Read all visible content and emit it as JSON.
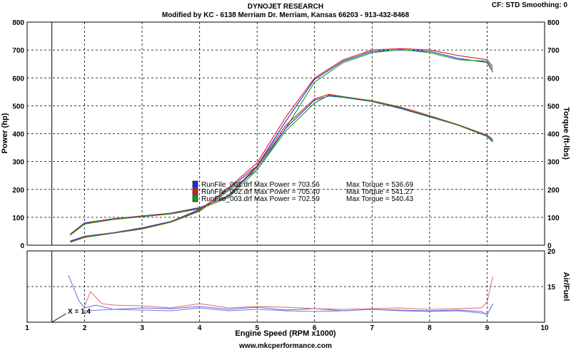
{
  "header": {
    "title": "DYNOJET RESEARCH",
    "subtitle": "Modified by KC - 6138 Merriam Dr. Merriam, Kansas 66203 - 913-432-8468",
    "corner": "CF: STD   Smoothing: 0"
  },
  "footer": {
    "url": "www.mkcperformance.com"
  },
  "chart_data": [
    {
      "type": "line",
      "xlabel": "Engine Speed (RPM x1000)",
      "ylabel_left": "Power (hp)",
      "ylabel_right": "Torque (ft-lbs)",
      "xlim": [
        1,
        10
      ],
      "ylim": [
        0,
        800
      ],
      "x_ticks": [
        "1",
        "2",
        "3",
        "4",
        "5",
        "6",
        "7",
        "8",
        "9",
        "10"
      ],
      "y_ticks": [
        "0",
        "100",
        "200",
        "300",
        "400",
        "500",
        "600",
        "700",
        "800"
      ],
      "grid": true,
      "marker_line_x": 1.43,
      "legend": {
        "placement": "center",
        "entries": [
          {
            "name": "RunFile_001.drf",
            "power_label": "Max Power = 703.56",
            "torque_label": "Max Torque = 536.69",
            "color": "#1a2fd6"
          },
          {
            "name": "RunFile_002.drf",
            "power_label": "Max Power = 705.40",
            "torque_label": "Max Torque = 541.27",
            "color": "#d42020"
          },
          {
            "name": "RunFile_003.drf",
            "power_label": "Max Power = 702.59",
            "torque_label": "Max Torque = 540.43",
            "color": "#1a9a1a"
          }
        ]
      },
      "series": [
        {
          "name": "RunFile_001.drf",
          "measure": "power",
          "color": "#1a2fd6",
          "x": [
            1.75,
            2.0,
            2.5,
            3.0,
            3.5,
            4.0,
            4.5,
            5.0,
            5.5,
            6.0,
            6.5,
            7.0,
            7.5,
            8.0,
            8.5,
            9.0,
            9.1
          ],
          "y": [
            15,
            32,
            45,
            62,
            85,
            128,
            200,
            285,
            445,
            595,
            660,
            695,
            700,
            695,
            670,
            655,
            620
          ]
        },
        {
          "name": "RunFile_002.drf",
          "measure": "power",
          "color": "#d42020",
          "x": [
            1.75,
            2.0,
            2.5,
            3.0,
            3.5,
            4.0,
            4.5,
            5.0,
            5.5,
            6.0,
            6.5,
            7.0,
            7.5,
            8.0,
            8.5,
            9.0,
            9.1
          ],
          "y": [
            12,
            30,
            44,
            60,
            84,
            125,
            205,
            295,
            460,
            600,
            665,
            700,
            705,
            700,
            680,
            665,
            640
          ]
        },
        {
          "name": "RunFile_003.drf",
          "measure": "power",
          "color": "#1a9a1a",
          "x": [
            1.75,
            2.0,
            2.5,
            3.0,
            3.5,
            4.0,
            4.5,
            5.0,
            5.5,
            6.0,
            6.5,
            7.0,
            7.5,
            8.0,
            8.5,
            9.0,
            9.1
          ],
          "y": [
            10,
            28,
            43,
            58,
            82,
            122,
            195,
            270,
            420,
            585,
            655,
            690,
            702,
            690,
            665,
            660,
            630
          ]
        },
        {
          "name": "RunFile_001.drf",
          "measure": "torque",
          "color": "#1a2fd6",
          "x": [
            1.75,
            2.0,
            2.5,
            3.0,
            3.5,
            4.0,
            4.5,
            5.0,
            5.5,
            6.0,
            6.25,
            6.5,
            7.0,
            7.5,
            8.0,
            8.5,
            9.0,
            9.1
          ],
          "y": [
            40,
            80,
            95,
            105,
            115,
            135,
            175,
            280,
            420,
            520,
            535,
            530,
            515,
            490,
            460,
            430,
            390,
            370
          ]
        },
        {
          "name": "RunFile_002.drf",
          "measure": "torque",
          "color": "#d42020",
          "x": [
            1.75,
            2.0,
            2.5,
            3.0,
            3.5,
            4.0,
            4.5,
            5.0,
            5.5,
            6.0,
            6.25,
            6.5,
            7.0,
            7.5,
            8.0,
            8.5,
            9.0,
            9.1
          ],
          "y": [
            38,
            78,
            94,
            104,
            114,
            133,
            178,
            285,
            430,
            525,
            541,
            533,
            518,
            495,
            465,
            432,
            395,
            380
          ]
        },
        {
          "name": "RunFile_003.drf",
          "measure": "torque",
          "color": "#1a9a1a",
          "x": [
            1.75,
            2.0,
            2.5,
            3.0,
            3.5,
            4.0,
            4.5,
            5.0,
            5.5,
            6.0,
            6.25,
            6.5,
            7.0,
            7.5,
            8.0,
            8.5,
            9.0,
            9.1
          ],
          "y": [
            36,
            76,
            92,
            102,
            112,
            130,
            170,
            270,
            410,
            510,
            538,
            532,
            516,
            492,
            462,
            430,
            392,
            375
          ]
        }
      ]
    },
    {
      "type": "line",
      "ylabel_right": "Air/Fuel",
      "xlim": [
        1,
        10
      ],
      "ylim": [
        10,
        20
      ],
      "y_ticks_right": [
        "20",
        "15"
      ],
      "grid": true,
      "cursor_label": "X = 1.4",
      "series": [
        {
          "name": "RunFile_001.drf",
          "color": "#5c6cf0",
          "x": [
            1.72,
            1.8,
            1.9,
            2.0,
            2.2,
            2.5,
            3.0,
            3.5,
            4.0,
            4.5,
            5.0,
            5.5,
            6.0,
            6.5,
            7.0,
            7.5,
            8.0,
            8.5,
            8.9,
            9.0,
            9.1
          ],
          "y": [
            16.6,
            15.0,
            13.0,
            12.0,
            12.4,
            11.8,
            12.0,
            11.9,
            12.2,
            11.8,
            12.1,
            11.7,
            11.9,
            11.6,
            11.8,
            11.7,
            11.6,
            11.7,
            11.5,
            11.0,
            12.6
          ]
        },
        {
          "name": "RunFile_002.drf",
          "color": "#e06a6a",
          "x": [
            2.0,
            2.1,
            2.3,
            2.5,
            3.0,
            3.5,
            4.0,
            4.5,
            5.0,
            5.5,
            6.0,
            6.5,
            7.0,
            7.5,
            8.0,
            8.5,
            8.9,
            9.0,
            9.1
          ],
          "y": [
            12.2,
            14.3,
            12.6,
            12.4,
            12.3,
            12.0,
            12.6,
            12.0,
            12.2,
            12.1,
            11.9,
            11.8,
            11.9,
            12.0,
            11.8,
            11.9,
            12.0,
            12.8,
            16.4
          ]
        },
        {
          "name": "RunFile_003.drf",
          "color": "#7a7ad0",
          "x": [
            2.0,
            2.5,
            3.0,
            3.5,
            4.0,
            4.5,
            5.0,
            5.5,
            6.0,
            6.5,
            7.0,
            7.5,
            8.0,
            8.5,
            9.0
          ],
          "y": [
            11.6,
            11.8,
            11.7,
            11.6,
            12.0,
            11.6,
            11.8,
            11.6,
            11.5,
            11.6,
            11.8,
            11.6,
            11.5,
            11.6,
            11.2
          ]
        }
      ]
    }
  ]
}
